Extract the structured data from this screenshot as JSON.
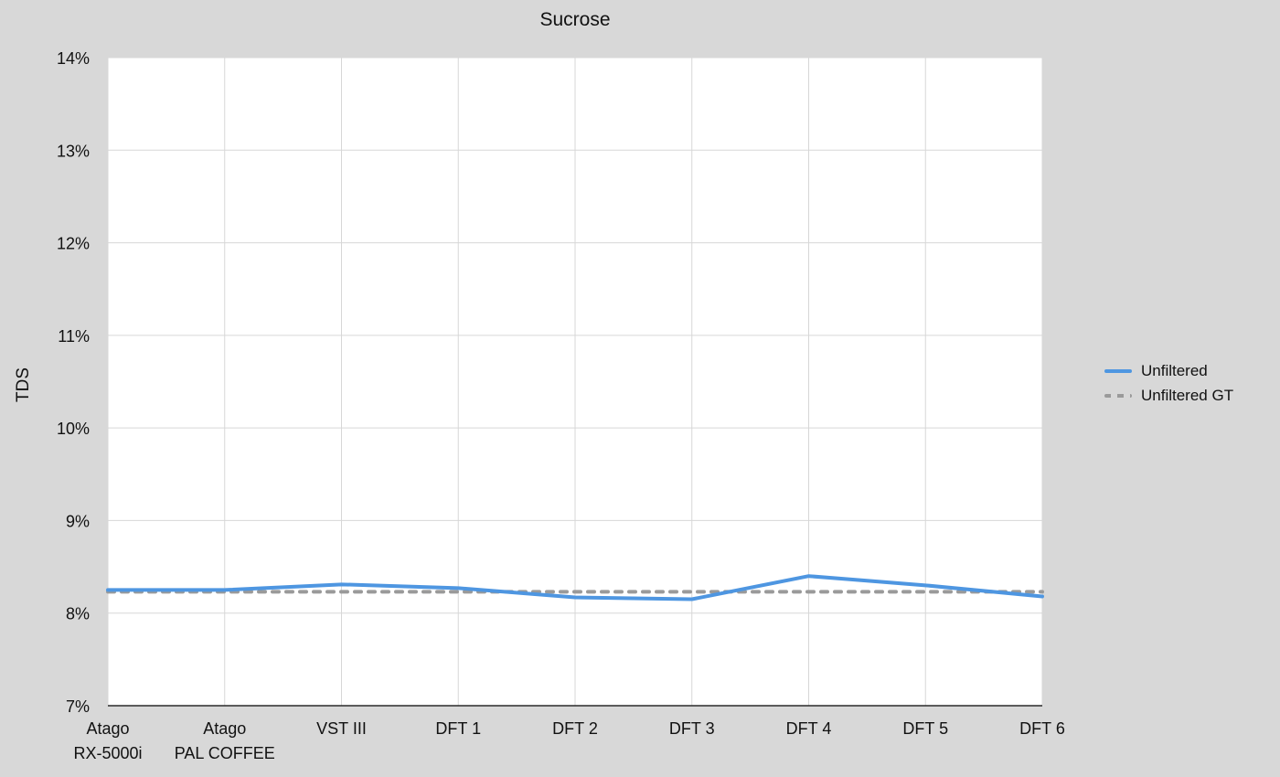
{
  "page": {
    "background": "#d8d8d8",
    "plot_background": "#ffffff",
    "gridline_color": "#d7d7d7",
    "axis_line_color": "#2a2a2a",
    "text_color": "#111111"
  },
  "chart_data": {
    "type": "line",
    "title": "Sucrose",
    "xlabel": "",
    "ylabel": "TDS",
    "categories": [
      "Atago\nRX-5000i",
      "Atago\nPAL COFFEE",
      "VST III",
      "DFT 1",
      "DFT 2",
      "DFT 3",
      "DFT 4",
      "DFT 5",
      "DFT 6"
    ],
    "series": [
      {
        "name": "Unfiltered",
        "values": [
          8.25,
          8.25,
          8.31,
          8.27,
          8.17,
          8.15,
          8.4,
          8.3,
          8.18
        ],
        "color": "#4e96e1",
        "style": "solid"
      },
      {
        "name": "Unfiltered GT",
        "values": [
          8.23,
          8.23,
          8.23,
          8.23,
          8.23,
          8.23,
          8.23,
          8.23,
          8.23
        ],
        "color": "#9a9a9a",
        "style": "dashed"
      }
    ],
    "ylim": [
      7,
      14
    ],
    "yticks": [
      {
        "value": 7,
        "label": "7%"
      },
      {
        "value": 8,
        "label": "8%"
      },
      {
        "value": 9,
        "label": "9%"
      },
      {
        "value": 10,
        "label": "10%"
      },
      {
        "value": 11,
        "label": "11%"
      },
      {
        "value": 12,
        "label": "12%"
      },
      {
        "value": 13,
        "label": "13%"
      },
      {
        "value": 14,
        "label": "14%"
      }
    ],
    "grid": true,
    "legend_position": "right"
  }
}
